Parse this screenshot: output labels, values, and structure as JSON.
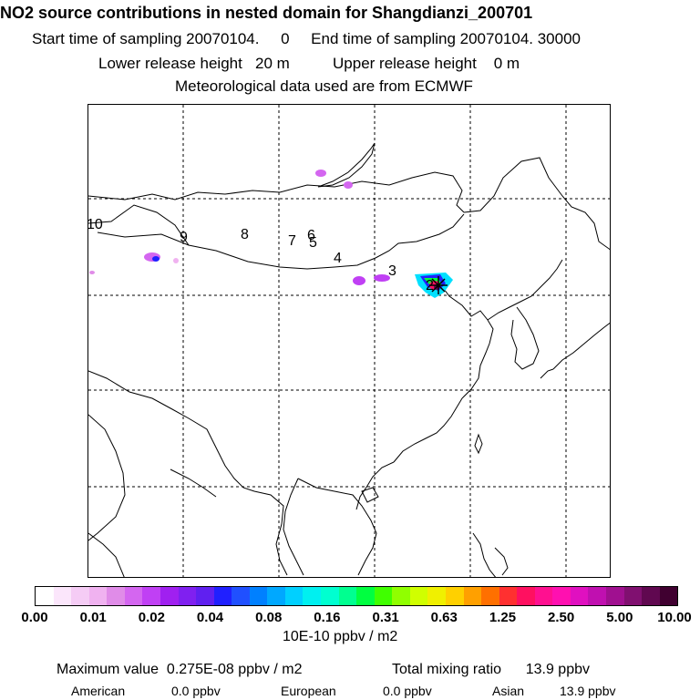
{
  "header": {
    "title": "NO2 source contributions in nested domain for Shangdianzi_200701",
    "line1": "Start time of sampling 20070104.     0     End time of sampling 20070104. 30000",
    "line2": "Lower release height   20 m          Upper release height    0 m",
    "line3": "Meteorological data used are from ECMWF"
  },
  "map": {
    "trajectory_labels": [
      "10",
      "9",
      "8",
      "7",
      "6",
      "5",
      "4",
      "3",
      "2"
    ]
  },
  "colorbar": {
    "colors": [
      "#ffffff",
      "#fbe6fb",
      "#f5ccf5",
      "#f0b2f0",
      "#e08ce8",
      "#d466f0",
      "#c040f4",
      "#a020f0",
      "#8020f0",
      "#6020f0",
      "#2020ff",
      "#2050ff",
      "#0080ff",
      "#00a8ff",
      "#00d0ff",
      "#00f0f0",
      "#00ffd0",
      "#00ff90",
      "#00ff40",
      "#40ff00",
      "#90ff00",
      "#d0ff00",
      "#f0f000",
      "#ffd000",
      "#ffa000",
      "#ff7000",
      "#ff3030",
      "#ff1060",
      "#ff1090",
      "#ff10b0",
      "#e010c0",
      "#c010b0",
      "#a01090",
      "#801070",
      "#600850",
      "#400030"
    ],
    "ticks": [
      "0.00",
      "0.01",
      "0.02",
      "0.04",
      "0.08",
      "0.16",
      "0.31",
      "0.63",
      "1.25",
      "2.50",
      "5.00",
      "10.00"
    ]
  },
  "units": "10E-10 ppbv / m2",
  "summary": {
    "max_label": "Maximum value  0.275E-08 ppbv / m2",
    "total_label": "Total mixing ratio      13.9 ppbv",
    "regions": [
      {
        "name": "American",
        "value": "0.0 ppbv"
      },
      {
        "name": "European",
        "value": "0.0 ppbv"
      },
      {
        "name": "Asian",
        "value": "13.9 ppbv"
      }
    ]
  }
}
